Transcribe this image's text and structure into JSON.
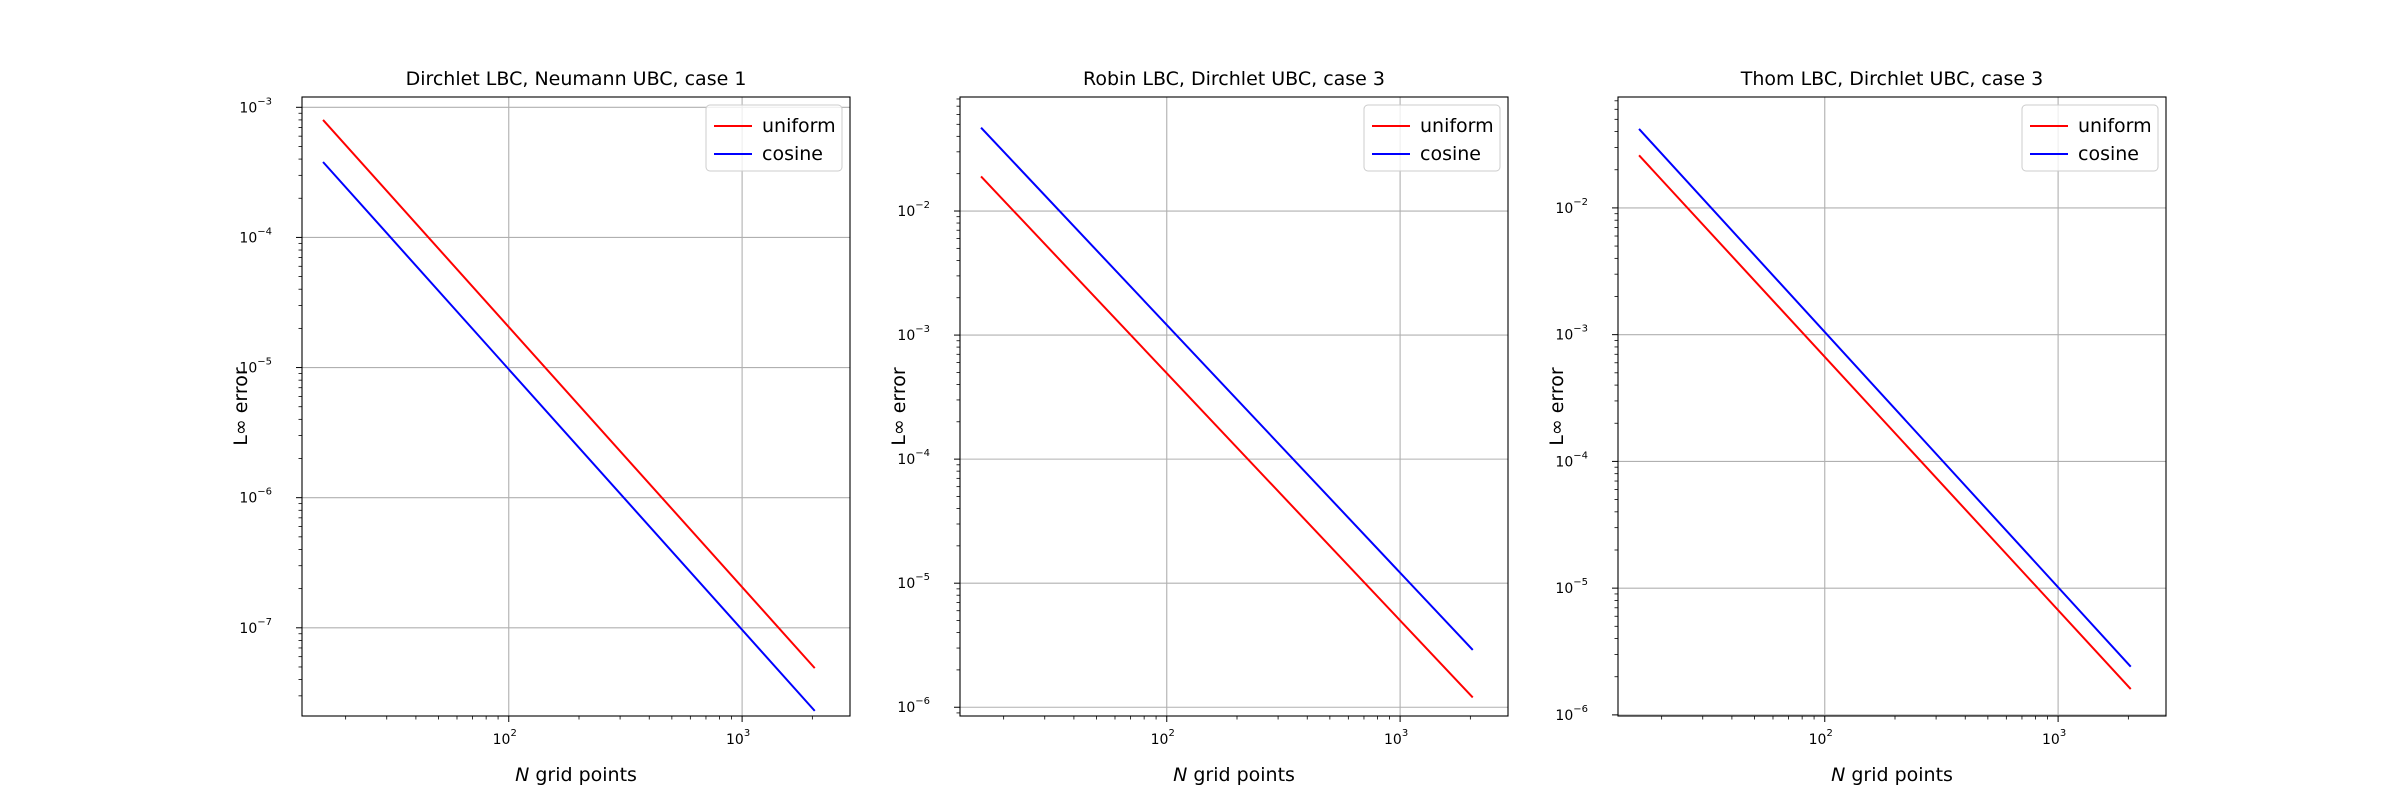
{
  "chart_data": [
    {
      "type": "line",
      "title": "Dirchlet LBC, Neumann UBC, case 1",
      "xlabel": "grid points",
      "xlabel_var": "N",
      "ylabel": "L∞ error",
      "xscale": "log",
      "yscale": "log",
      "xlim": [
        13,
        2900
      ],
      "ylim": [
        2.1e-08,
        0.0012
      ],
      "grid": true,
      "legend_position": "upper right",
      "x_ticks": [
        {
          "value": 100,
          "label": "10",
          "exp": "2"
        },
        {
          "value": 1000,
          "label": "10",
          "exp": "3"
        }
      ],
      "y_ticks": [
        {
          "value": 0.001,
          "label": "10",
          "exp": "−3"
        },
        {
          "value": 0.0001,
          "label": "10",
          "exp": "−4"
        },
        {
          "value": 1e-05,
          "label": "10",
          "exp": "−5"
        },
        {
          "value": 1e-06,
          "label": "10",
          "exp": "−6"
        },
        {
          "value": 1e-07,
          "label": "10",
          "exp": "−7"
        }
      ],
      "series": [
        {
          "name": "uniform",
          "color": "#ff0000",
          "x": [
            16,
            2048
          ],
          "y": [
            0.0008,
            4.9e-08
          ]
        },
        {
          "name": "cosine",
          "color": "#0000ff",
          "x": [
            16,
            2048
          ],
          "y": [
            0.00038,
            2.3e-08
          ]
        }
      ]
    },
    {
      "type": "line",
      "title": "Robin LBC, Dirchlet UBC, case 3",
      "xlabel": "grid points",
      "xlabel_var": "N",
      "ylabel": "L∞ error",
      "xscale": "log",
      "yscale": "log",
      "xlim": [
        13,
        2900
      ],
      "ylim": [
        8.5e-07,
        0.083
      ],
      "grid": true,
      "legend_position": "upper right",
      "x_ticks": [
        {
          "value": 100,
          "label": "10",
          "exp": "2"
        },
        {
          "value": 1000,
          "label": "10",
          "exp": "3"
        }
      ],
      "y_ticks": [
        {
          "value": 0.01,
          "label": "10",
          "exp": "−2"
        },
        {
          "value": 0.001,
          "label": "10",
          "exp": "−3"
        },
        {
          "value": 0.0001,
          "label": "10",
          "exp": "−4"
        },
        {
          "value": 1e-05,
          "label": "10",
          "exp": "−5"
        },
        {
          "value": 1e-06,
          "label": "10",
          "exp": "−6"
        }
      ],
      "series": [
        {
          "name": "uniform",
          "color": "#ff0000",
          "x": [
            16,
            2048
          ],
          "y": [
            0.019,
            1.2e-06
          ]
        },
        {
          "name": "cosine",
          "color": "#0000ff",
          "x": [
            16,
            2048
          ],
          "y": [
            0.047,
            2.9e-06
          ]
        }
      ]
    },
    {
      "type": "line",
      "title": "Thom LBC, Dirchlet UBC, case 3",
      "xlabel": "grid points",
      "xlabel_var": "N",
      "ylabel": "L∞ error",
      "xscale": "log",
      "yscale": "log",
      "xlim": [
        13,
        2900
      ],
      "ylim": [
        9.8e-07,
        0.075
      ],
      "grid": true,
      "legend_position": "upper right",
      "x_ticks": [
        {
          "value": 100,
          "label": "10",
          "exp": "2"
        },
        {
          "value": 1000,
          "label": "10",
          "exp": "3"
        }
      ],
      "y_ticks": [
        {
          "value": 0.01,
          "label": "10",
          "exp": "−2"
        },
        {
          "value": 0.001,
          "label": "10",
          "exp": "−3"
        },
        {
          "value": 0.0001,
          "label": "10",
          "exp": "−4"
        },
        {
          "value": 1e-05,
          "label": "10",
          "exp": "−5"
        },
        {
          "value": 1e-06,
          "label": "10",
          "exp": "−6"
        }
      ],
      "series": [
        {
          "name": "uniform",
          "color": "#ff0000",
          "x": [
            16,
            2048
          ],
          "y": [
            0.026,
            1.6e-06
          ]
        },
        {
          "name": "cosine",
          "color": "#0000ff",
          "x": [
            16,
            2048
          ],
          "y": [
            0.042,
            2.4e-06
          ]
        }
      ]
    }
  ]
}
